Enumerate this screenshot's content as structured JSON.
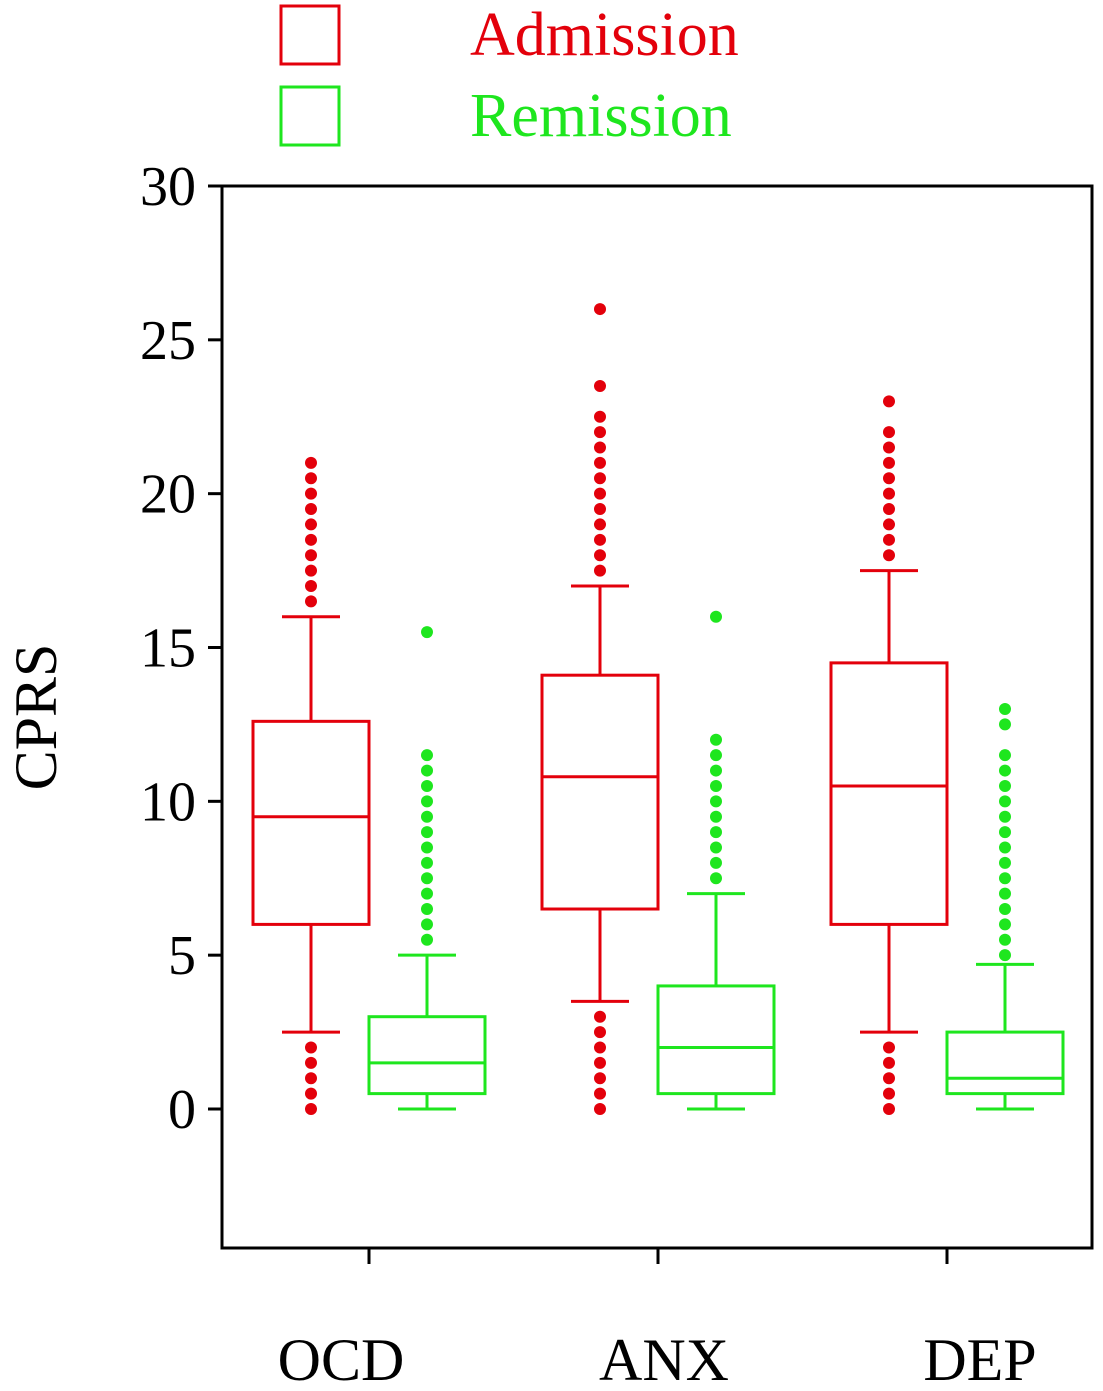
{
  "chart_data": {
    "type": "box",
    "ylabel": "CPRS",
    "xlabel": "",
    "ylim": [
      -4.5,
      30
    ],
    "y_ticks": [
      0,
      5,
      10,
      15,
      20,
      25,
      30
    ],
    "categories": [
      "OCD",
      "ANX",
      "DEP"
    ],
    "grid": false,
    "legend_position": "top",
    "colors": {
      "Admission": "#e3000b",
      "Remission": "#1ee61e"
    },
    "series": [
      {
        "name": "Admission",
        "boxes": [
          {
            "category": "OCD",
            "whisker_low": 2.5,
            "q1": 6,
            "median": 9.5,
            "q3": 12.6,
            "whisker_high": 16,
            "outliers": [
              16.5,
              17,
              17.5,
              18,
              18.5,
              19,
              19.5,
              20,
              20.5,
              21,
              0,
              0.5,
              1,
              1.5,
              2
            ]
          },
          {
            "category": "ANX",
            "whisker_low": 3.5,
            "q1": 6.5,
            "median": 10.8,
            "q3": 14.1,
            "whisker_high": 17,
            "outliers": [
              17.5,
              18,
              18.5,
              19,
              19.5,
              20,
              20.5,
              21,
              21.5,
              22,
              22.5,
              23.5,
              26,
              0,
              0.5,
              1,
              1.5,
              2,
              2.5,
              3
            ]
          },
          {
            "category": "DEP",
            "whisker_low": 2.5,
            "q1": 6,
            "median": 10.5,
            "q3": 14.5,
            "whisker_high": 17.5,
            "outliers": [
              18,
              18.5,
              19,
              19.5,
              20,
              20.5,
              21,
              21.5,
              22,
              23,
              0,
              0.5,
              1,
              1.5,
              2
            ]
          }
        ]
      },
      {
        "name": "Remission",
        "boxes": [
          {
            "category": "OCD",
            "whisker_low": 0,
            "q1": 0.5,
            "median": 1.5,
            "q3": 3,
            "whisker_high": 5,
            "outliers": [
              5.5,
              6,
              6.5,
              7,
              7.5,
              8,
              8.5,
              9,
              9.5,
              10,
              10.5,
              11,
              11.5,
              15.5
            ]
          },
          {
            "category": "ANX",
            "whisker_low": 0,
            "q1": 0.5,
            "median": 2,
            "q3": 4,
            "whisker_high": 7,
            "outliers": [
              7.5,
              8,
              8.5,
              9,
              9.5,
              10,
              10.5,
              11,
              11.5,
              12,
              16
            ]
          },
          {
            "category": "DEP",
            "whisker_low": 0,
            "q1": 0.5,
            "median": 1,
            "q3": 2.5,
            "whisker_high": 4.7,
            "outliers": [
              5,
              5.5,
              6,
              6.5,
              7,
              7.5,
              8,
              8.5,
              9,
              9.5,
              10,
              10.5,
              11,
              11.5,
              12.5,
              13
            ]
          }
        ]
      }
    ]
  }
}
